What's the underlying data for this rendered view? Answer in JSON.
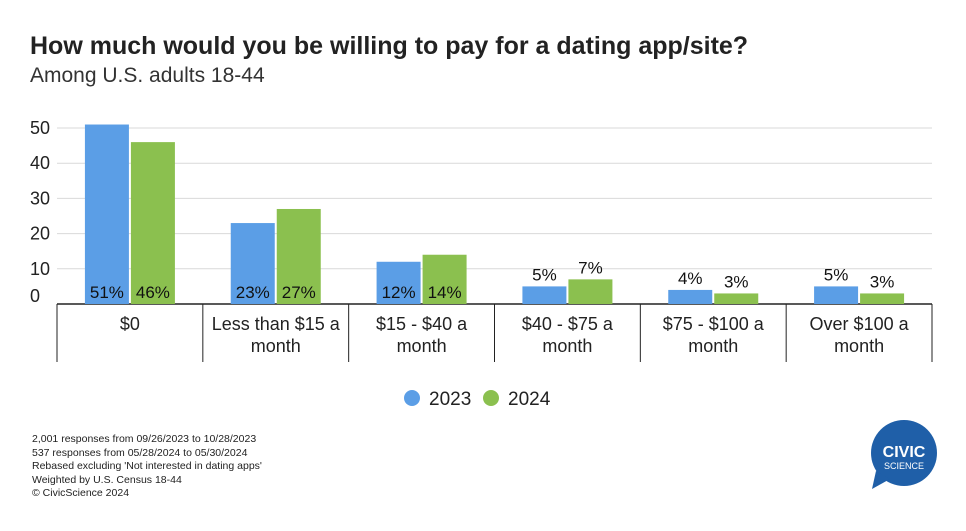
{
  "title": "How much would you be willing to pay for a dating app/site?",
  "subtitle": "Among U.S. adults 18-44",
  "chart_data": {
    "type": "bar",
    "categories": [
      [
        "$0"
      ],
      [
        "Less than $15 a",
        "month"
      ],
      [
        "$15 - $40 a",
        "month"
      ],
      [
        "$40 - $75 a",
        "month"
      ],
      [
        "$75 - $100 a",
        "month"
      ],
      [
        "Over $100 a",
        "month"
      ]
    ],
    "series": [
      {
        "name": "2023",
        "color": "#5b9ee6",
        "values": [
          51,
          23,
          12,
          5,
          4,
          5
        ],
        "labels": [
          "51%",
          "23%",
          "12%",
          "5%",
          "4%",
          "5%"
        ]
      },
      {
        "name": "2024",
        "color": "#8bc04f",
        "values": [
          46,
          27,
          14,
          7,
          3,
          3
        ],
        "labels": [
          "46%",
          "27%",
          "14%",
          "7%",
          "3%",
          "3%"
        ]
      }
    ],
    "yticks": [
      "0",
      "10",
      "20",
      "30",
      "40",
      "50"
    ],
    "ylim": [
      0,
      52
    ],
    "grid": true,
    "legend_position": "bottom"
  },
  "footnotes": [
    "2,001 responses from 09/26/2023 to 10/28/2023",
    "537 responses from 05/28/2024 to 05/30/2024",
    "Rebased excluding 'Not interested in dating apps'",
    "Weighted by U.S. Census 18-44",
    "© CivicScience 2024"
  ],
  "logo": {
    "line1": "CIVIC",
    "line2": "SCIENCE",
    "color": "#1f5fa8"
  }
}
